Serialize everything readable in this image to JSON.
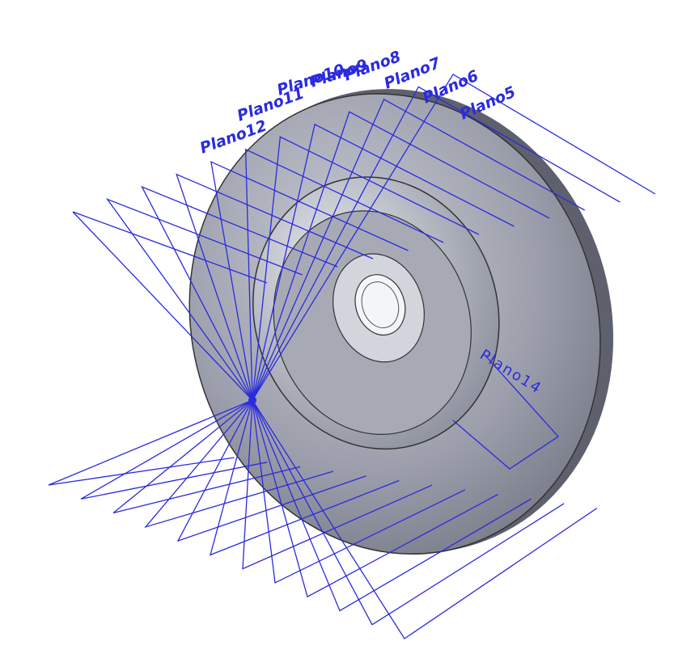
{
  "planes": [
    {
      "label": "Plano5"
    },
    {
      "label": "Plano6"
    },
    {
      "label": "Plano7"
    },
    {
      "label": "Plano8"
    },
    {
      "label": "Plano9"
    },
    {
      "label": "Plano10"
    },
    {
      "label": "Plano11"
    },
    {
      "label": "Plano12"
    },
    {
      "label": "Plano14"
    }
  ]
}
